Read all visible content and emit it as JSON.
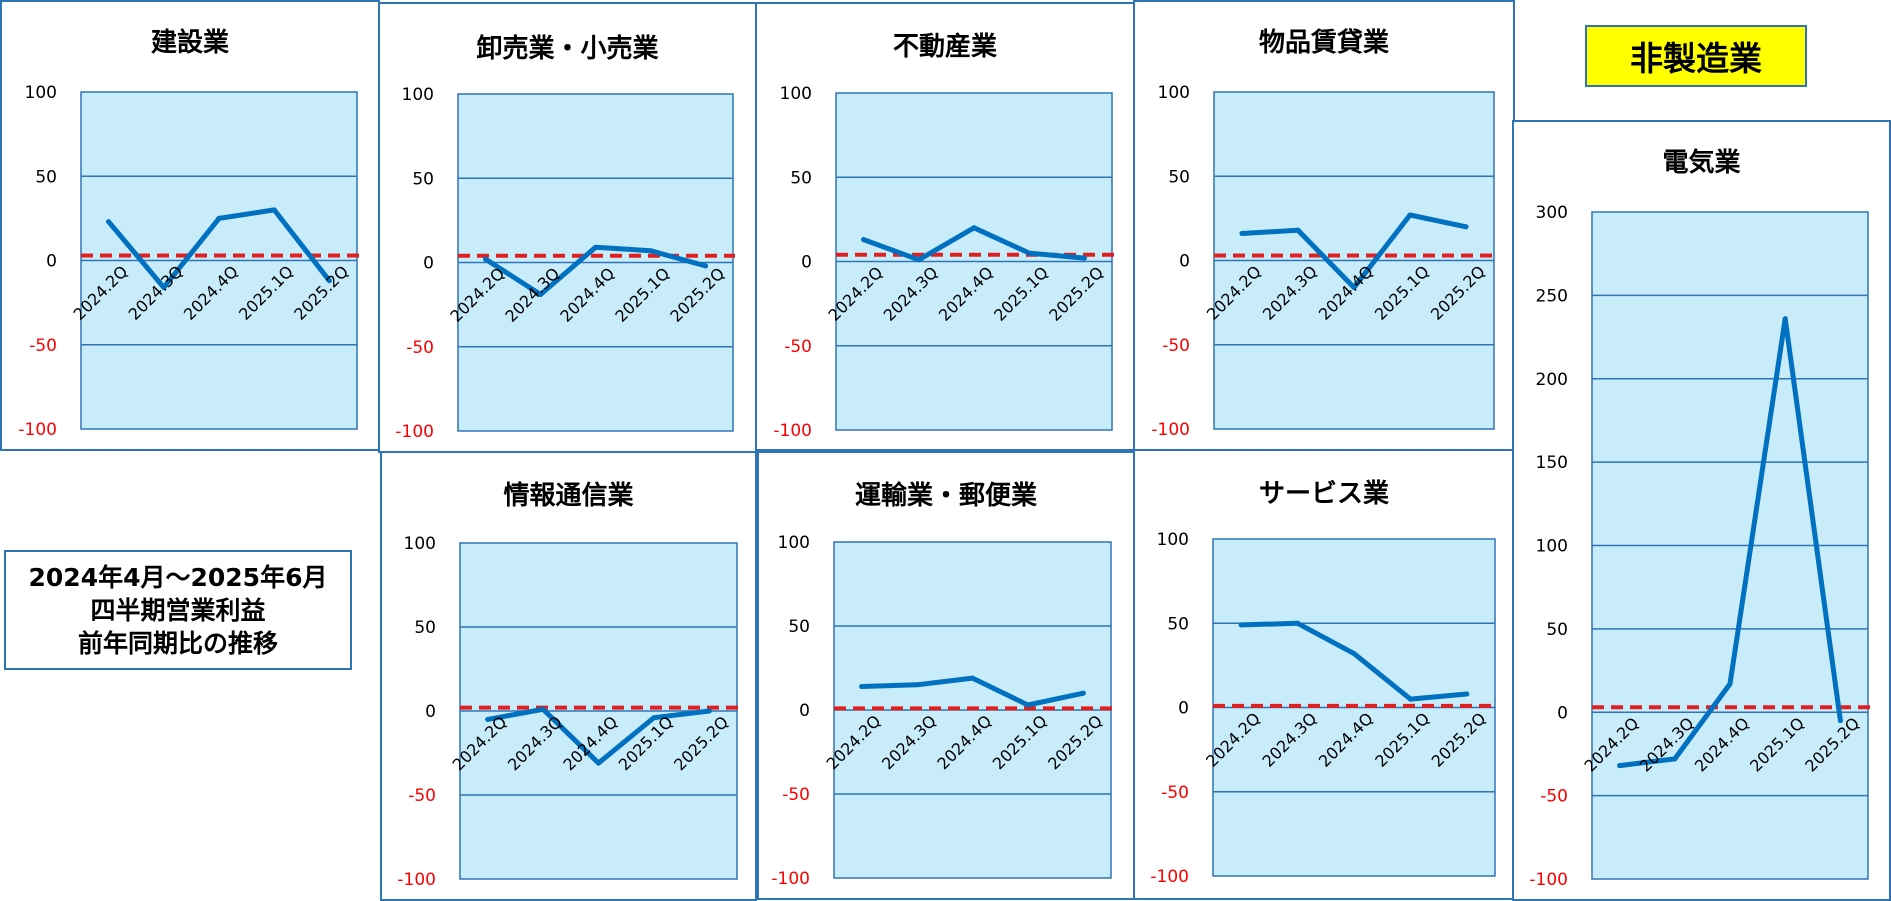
{
  "label_non_manufacturing": "非製造業",
  "note": {
    "line1": "2024年4月～2025年6月",
    "line2": "四半期営業利益",
    "line3": "前年同期比の推移"
  },
  "colors": {
    "line": "#0070c0",
    "reference": "#e02020",
    "plot_bg": "#c9ecfa",
    "frame": "#2e75b6",
    "negative_tick": "#ff0000"
  },
  "chart_data": [
    {
      "type": "line",
      "title": "建設業",
      "x": [
        "2024.2Q",
        "2024.3Q",
        "2024.4Q",
        "2025.1Q",
        "2025.2Q"
      ],
      "values": [
        23,
        -16,
        25,
        30,
        -12
      ],
      "reference": 3,
      "ylim": [
        -100,
        100
      ],
      "yticks": [
        "100",
        "50",
        "0",
        "-50",
        "-100"
      ]
    },
    {
      "type": "line",
      "title": "卸売業・小売業",
      "x": [
        "2024.2Q",
        "2024.3Q",
        "2024.4Q",
        "2025.1Q",
        "2025.2Q"
      ],
      "values": [
        2,
        -19,
        9,
        7,
        -2
      ],
      "reference": 4,
      "ylim": [
        -100,
        100
      ],
      "yticks": [
        "100",
        "50",
        "0",
        "-50",
        "-100"
      ]
    },
    {
      "type": "line",
      "title": "不動産業",
      "x": [
        "2024.2Q",
        "2024.3Q",
        "2024.4Q",
        "2025.1Q",
        "2025.2Q"
      ],
      "values": [
        13,
        1,
        20,
        5,
        2
      ],
      "reference": 4,
      "ylim": [
        -100,
        100
      ],
      "yticks": [
        "100",
        "50",
        "0",
        "-50",
        "-100"
      ]
    },
    {
      "type": "line",
      "title": "物品賃貸業",
      "x": [
        "2024.2Q",
        "2024.3Q",
        "2024.4Q",
        "2025.1Q",
        "2025.2Q"
      ],
      "values": [
        16,
        18,
        -16,
        27,
        20
      ],
      "reference": 3,
      "ylim": [
        -100,
        100
      ],
      "yticks": [
        "100",
        "50",
        "0",
        "-50",
        "-100"
      ]
    },
    {
      "type": "line",
      "title": "情報通信業",
      "x": [
        "2024.2Q",
        "2024.3Q",
        "2024.4Q",
        "2025.1Q",
        "2025.2Q"
      ],
      "values": [
        -5,
        1,
        -31,
        -4,
        0
      ],
      "reference": 2,
      "ylim": [
        -100,
        100
      ],
      "yticks": [
        "100",
        "50",
        "0",
        "-50",
        "-100"
      ]
    },
    {
      "type": "line",
      "title": "運輸業・郵便業",
      "x": [
        "2024.2Q",
        "2024.3Q",
        "2024.4Q",
        "2025.1Q",
        "2025.2Q"
      ],
      "values": [
        14,
        15,
        19,
        3,
        10
      ],
      "reference": 1,
      "ylim": [
        -100,
        100
      ],
      "yticks": [
        "100",
        "50",
        "0",
        "-50",
        "-100"
      ]
    },
    {
      "type": "line",
      "title": "サービス業",
      "x": [
        "2024.2Q",
        "2024.3Q",
        "2024.4Q",
        "2025.1Q",
        "2025.2Q"
      ],
      "values": [
        49,
        50,
        32,
        5,
        8
      ],
      "reference": 1,
      "ylim": [
        -100,
        100
      ],
      "yticks": [
        "100",
        "50",
        "0",
        "-50",
        "-100"
      ]
    },
    {
      "type": "line",
      "title": "電気業",
      "x": [
        "2024.2Q",
        "2024.3Q",
        "2024.4Q",
        "2025.1Q",
        "2025.2Q"
      ],
      "values": [
        -32,
        -28,
        17,
        236,
        -5
      ],
      "reference": 3,
      "ylim": [
        -100,
        300
      ],
      "yticks": [
        "300",
        "250",
        "200",
        "150",
        "100",
        "50",
        "0",
        "-50",
        "-100"
      ]
    }
  ]
}
